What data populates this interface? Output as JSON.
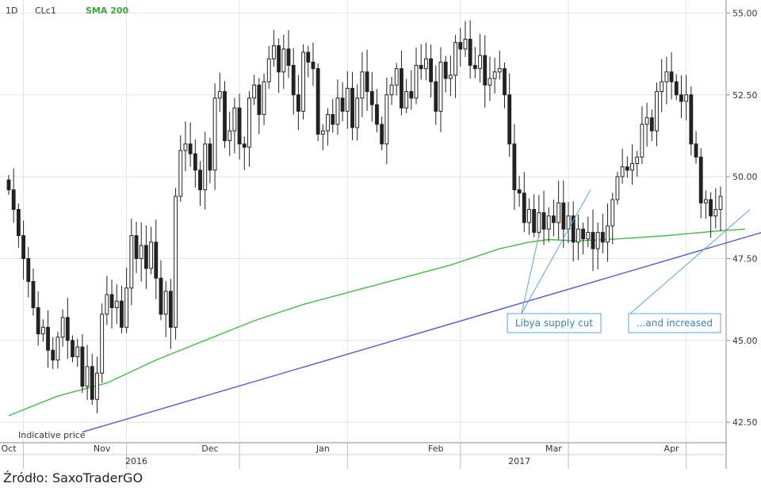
{
  "header": {
    "interval": "1D",
    "symbol": "CLc1",
    "indicator": "SMA 200"
  },
  "source": "Źródło: SaxoTraderGO",
  "colors": {
    "sma": "#44bb44",
    "trend": "#5555cc",
    "candle": "#222222",
    "annotation": "#5aa6dc",
    "grid": "#e4e4e4"
  },
  "chart_data": {
    "type": "candlestick",
    "y_ticks": [
      "55.00",
      "52.50",
      "50.00",
      "47.50",
      "45.00",
      "42.50"
    ],
    "ylim": [
      41.9,
      55.3
    ],
    "x_labels": [
      {
        "label": "Oct",
        "i": 0
      },
      {
        "label": "Nov",
        "i": 19
      },
      {
        "label": "Dec",
        "i": 41
      },
      {
        "label": "Jan",
        "i": 64
      },
      {
        "label": "Feb",
        "i": 87
      },
      {
        "label": "Mar",
        "i": 111
      },
      {
        "label": "Apr",
        "i": 135
      }
    ],
    "year_labels": [
      {
        "label": "2016",
        "i": 26
      },
      {
        "label": "2017",
        "i": 104
      }
    ],
    "separators": [
      3,
      24,
      47,
      69,
      92,
      114,
      138
    ],
    "indicative_label": "Indicative price",
    "annotations": [
      {
        "text": "Libya supply cut"
      },
      {
        "text": "...and increased"
      }
    ],
    "close": [
      49.6,
      49.0,
      48.2,
      47.5,
      46.8,
      46.0,
      45.2,
      45.4,
      44.7,
      44.4,
      45.1,
      45.7,
      45.0,
      44.5,
      44.8,
      43.6,
      44.2,
      43.2,
      44.0,
      45.8,
      46.4,
      46.0,
      46.2,
      45.4,
      46.6,
      48.2,
      47.5,
      47.9,
      47.2,
      48.0,
      46.9,
      45.8,
      46.5,
      45.4,
      49.4,
      50.8,
      51.0,
      50.7,
      50.2,
      49.6,
      51.0,
      50.2,
      52.4,
      52.6,
      51.1,
      51.4,
      52.1,
      51.0,
      50.9,
      52.4,
      52.8,
      51.9,
      52.9,
      53.6,
      54.0,
      53.2,
      53.9,
      53.4,
      52.5,
      52.0,
      53.8,
      53.5,
      53.3,
      51.3,
      51.4,
      51.9,
      51.6,
      52.4,
      52.0,
      52.7,
      51.5,
      52.4,
      53.2,
      52.6,
      52.2,
      51.6,
      51.0,
      52.5,
      52.8,
      53.3,
      52.1,
      52.6,
      52.4,
      53.4,
      53.3,
      53.6,
      52.9,
      52.0,
      53.5,
      53.0,
      53.1,
      54.1,
      53.9,
      54.2,
      53.4,
      53.3,
      53.7,
      52.8,
      53.0,
      53.2,
      53.3,
      52.5,
      51.0,
      49.6,
      49.5,
      48.6,
      49.0,
      48.3,
      48.9,
      48.4,
      48.8,
      48.6,
      49.2,
      48.4,
      48.8,
      48.0,
      48.4,
      48.1,
      48.3,
      47.8,
      48.3,
      48.0,
      48.5,
      49.3,
      50.0,
      50.3,
      50.2,
      50.4,
      50.6,
      51.6,
      51.8,
      51.4,
      52.6,
      52.9,
      53.2,
      52.9,
      52.5,
      52.3,
      52.5,
      51.0,
      50.6,
      49.2,
      49.3,
      48.8,
      49.0,
      49.4
    ],
    "sma200": [
      [
        0,
        42.7
      ],
      [
        10,
        43.3
      ],
      [
        20,
        43.7
      ],
      [
        30,
        44.4
      ],
      [
        40,
        45.0
      ],
      [
        50,
        45.6
      ],
      [
        60,
        46.1
      ],
      [
        70,
        46.5
      ],
      [
        80,
        46.9
      ],
      [
        90,
        47.3
      ],
      [
        100,
        47.8
      ],
      [
        106,
        48.0
      ],
      [
        110,
        48.08
      ],
      [
        116,
        48.04
      ],
      [
        124,
        48.1
      ],
      [
        134,
        48.2
      ],
      [
        145,
        48.35
      ],
      [
        150,
        48.4
      ]
    ],
    "trendline": {
      "from": [
        15.0,
        42.2
      ],
      "to": [
        158,
        48.5
      ]
    }
  }
}
